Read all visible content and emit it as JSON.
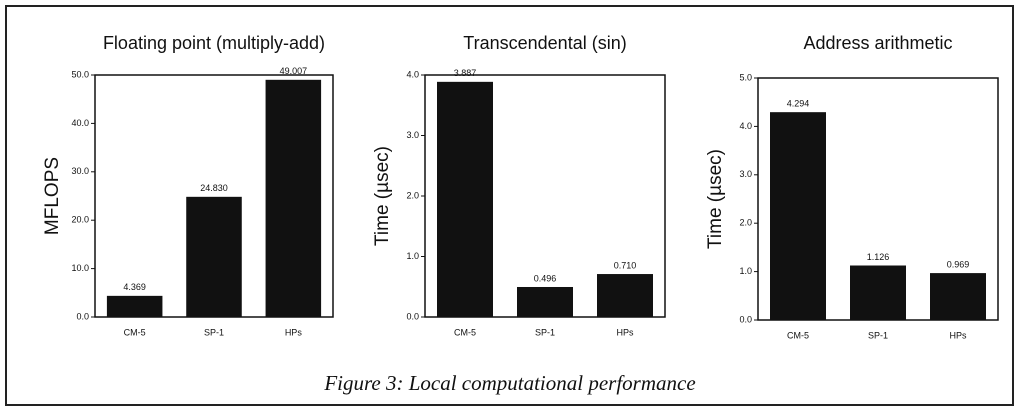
{
  "chart_data": [
    {
      "type": "bar",
      "title": "Floating point (multiply-add)",
      "ylabel": "MFLOPS",
      "categories": [
        "CM-5",
        "SP-1",
        "HPs"
      ],
      "values": [
        4.369,
        24.83,
        49.007
      ],
      "value_labels": [
        "4.369",
        "24.830",
        "49.007"
      ],
      "color": "#111111",
      "ylim": [
        0,
        50
      ],
      "yticks": [
        {
          "value": 0,
          "label": "0.0"
        },
        {
          "value": 10,
          "label": "10.0"
        },
        {
          "value": 20,
          "label": "20.0"
        },
        {
          "value": 30,
          "label": "30.0"
        },
        {
          "value": 40,
          "label": "40.0"
        },
        {
          "value": 50,
          "label": "50.0"
        }
      ]
    },
    {
      "type": "bar",
      "title": "Transcendental (sin)",
      "ylabel": "Time (µsec)",
      "categories": [
        "CM-5",
        "SP-1",
        "HPs"
      ],
      "values": [
        3.887,
        0.496,
        0.71
      ],
      "value_labels": [
        "3.887",
        "0.496",
        "0.710"
      ],
      "color": "#111111",
      "ylim": [
        0,
        4
      ],
      "yticks": [
        {
          "value": 0,
          "label": "0.0"
        },
        {
          "value": 1,
          "label": "1.0"
        },
        {
          "value": 2,
          "label": "2.0"
        },
        {
          "value": 3,
          "label": "3.0"
        },
        {
          "value": 4,
          "label": "4.0"
        }
      ]
    },
    {
      "type": "bar",
      "title": "Address arithmetic",
      "ylabel": "Time (µsec)",
      "categories": [
        "CM-5",
        "SP-1",
        "HPs"
      ],
      "values": [
        4.294,
        1.126,
        0.969
      ],
      "value_labels": [
        "4.294",
        "1.126",
        "0.969"
      ],
      "color": "#111111",
      "ylim": [
        0,
        5
      ],
      "yticks": [
        {
          "value": 0,
          "label": "0.0"
        },
        {
          "value": 1,
          "label": "1.0"
        },
        {
          "value": 2,
          "label": "2.0"
        },
        {
          "value": 3,
          "label": "3.0"
        },
        {
          "value": 4,
          "label": "4.0"
        },
        {
          "value": 5,
          "label": "5.0"
        }
      ]
    }
  ],
  "caption": "Figure 3: Local computational performance"
}
